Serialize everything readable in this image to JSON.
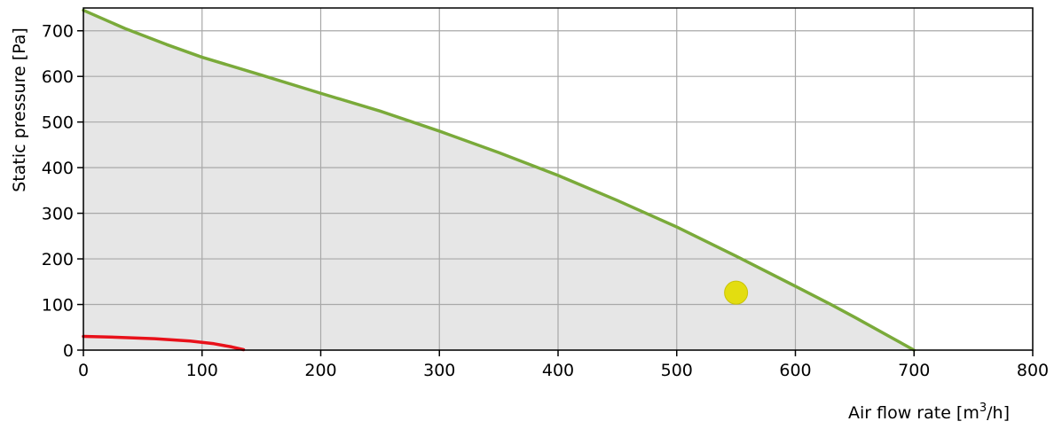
{
  "chart_data": {
    "type": "line",
    "title": "",
    "xlabel": "Air flow rate [m",
    "xlabel_sup": "3",
    "xlabel_suffix": "/h]",
    "ylabel": "Static pressure [Pa]",
    "xlim": [
      0,
      800
    ],
    "ylim": [
      0,
      750
    ],
    "xticks": [
      0,
      100,
      200,
      300,
      400,
      500,
      600,
      700,
      800
    ],
    "yticks": [
      0,
      100,
      200,
      300,
      400,
      500,
      600,
      700
    ],
    "grid": true,
    "series": [
      {
        "color": "#7aaa3a",
        "fill": "#e6e6e6",
        "points": [
          [
            0,
            745
          ],
          [
            35,
            705
          ],
          [
            70,
            670
          ],
          [
            100,
            642
          ],
          [
            150,
            603
          ],
          [
            200,
            563
          ],
          [
            250,
            524
          ],
          [
            300,
            480
          ],
          [
            350,
            433
          ],
          [
            400,
            383
          ],
          [
            450,
            328
          ],
          [
            500,
            270
          ],
          [
            550,
            206
          ],
          [
            600,
            140
          ],
          [
            630,
            100
          ],
          [
            650,
            72
          ],
          [
            700,
            0
          ]
        ]
      },
      {
        "color": "#e8111a",
        "points": [
          [
            0,
            30
          ],
          [
            30,
            28
          ],
          [
            60,
            25
          ],
          [
            90,
            20
          ],
          [
            110,
            14
          ],
          [
            125,
            7
          ],
          [
            135,
            1
          ]
        ]
      }
    ],
    "operating_point": {
      "x": 550,
      "y": 126,
      "color": "#e3dd10"
    }
  }
}
